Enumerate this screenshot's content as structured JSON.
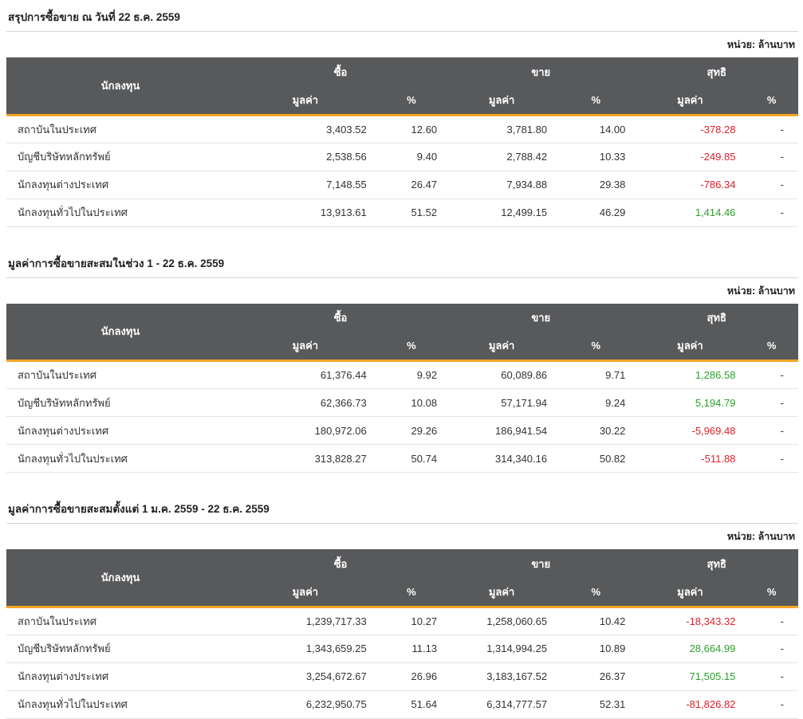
{
  "unit_label": "หน่วย: ล้านบาท",
  "columns": {
    "investor": "นักลงทุน",
    "buy": "ซื้อ",
    "sell": "ขาย",
    "net": "สุทธิ",
    "value": "มูลค่า",
    "percent": "%"
  },
  "colors": {
    "header_bg": "#58595b",
    "accent": "#f5a623",
    "positive": "#2e9e2e",
    "negative": "#d9232d"
  },
  "chart_data": [
    {
      "type": "table",
      "title": "สรุปการซื้อขาย ณ วันที่ 22 ธ.ค. 2559",
      "unit": "หน่วย: ล้านบาท",
      "rows": [
        {
          "investor": "สถาบันในประเทศ",
          "buy_value": "3,403.52",
          "buy_pct": "12.60",
          "sell_value": "3,781.80",
          "sell_pct": "14.00",
          "net_value": "-378.28",
          "net_pct": "-"
        },
        {
          "investor": "บัญชีบริษัทหลักทรัพย์",
          "buy_value": "2,538.56",
          "buy_pct": "9.40",
          "sell_value": "2,788.42",
          "sell_pct": "10.33",
          "net_value": "-249.85",
          "net_pct": "-"
        },
        {
          "investor": "นักลงทุนต่างประเทศ",
          "buy_value": "7,148.55",
          "buy_pct": "26.47",
          "sell_value": "7,934.88",
          "sell_pct": "29.38",
          "net_value": "-786.34",
          "net_pct": "-"
        },
        {
          "investor": "นักลงทุนทั่วไปในประเทศ",
          "buy_value": "13,913.61",
          "buy_pct": "51.52",
          "sell_value": "12,499.15",
          "sell_pct": "46.29",
          "net_value": "1,414.46",
          "net_pct": "-"
        }
      ]
    },
    {
      "type": "table",
      "title": "มูลค่าการซื้อขายสะสมในช่วง 1 - 22 ธ.ค. 2559",
      "unit": "หน่วย: ล้านบาท",
      "rows": [
        {
          "investor": "สถาบันในประเทศ",
          "buy_value": "61,376.44",
          "buy_pct": "9.92",
          "sell_value": "60,089.86",
          "sell_pct": "9.71",
          "net_value": "1,286.58",
          "net_pct": "-"
        },
        {
          "investor": "บัญชีบริษัทหลักทรัพย์",
          "buy_value": "62,366.73",
          "buy_pct": "10.08",
          "sell_value": "57,171.94",
          "sell_pct": "9.24",
          "net_value": "5,194.79",
          "net_pct": "-"
        },
        {
          "investor": "นักลงทุนต่างประเทศ",
          "buy_value": "180,972.06",
          "buy_pct": "29.26",
          "sell_value": "186,941.54",
          "sell_pct": "30.22",
          "net_value": "-5,969.48",
          "net_pct": "-"
        },
        {
          "investor": "นักลงทุนทั่วไปในประเทศ",
          "buy_value": "313,828.27",
          "buy_pct": "50.74",
          "sell_value": "314,340.16",
          "sell_pct": "50.82",
          "net_value": "-511.88",
          "net_pct": "-"
        }
      ]
    },
    {
      "type": "table",
      "title": "มูลค่าการซื้อขายสะสมตั้งแต่ 1 ม.ค. 2559 - 22 ธ.ค. 2559",
      "unit": "หน่วย: ล้านบาท",
      "rows": [
        {
          "investor": "สถาบันในประเทศ",
          "buy_value": "1,239,717.33",
          "buy_pct": "10.27",
          "sell_value": "1,258,060.65",
          "sell_pct": "10.42",
          "net_value": "-18,343.32",
          "net_pct": "-"
        },
        {
          "investor": "บัญชีบริษัทหลักทรัพย์",
          "buy_value": "1,343,659.25",
          "buy_pct": "11.13",
          "sell_value": "1,314,994.25",
          "sell_pct": "10.89",
          "net_value": "28,664.99",
          "net_pct": "-"
        },
        {
          "investor": "นักลงทุนต่างประเทศ",
          "buy_value": "3,254,672.67",
          "buy_pct": "26.96",
          "sell_value": "3,183,167.52",
          "sell_pct": "26.37",
          "net_value": "71,505.15",
          "net_pct": "-"
        },
        {
          "investor": "นักลงทุนทั่วไปในประเทศ",
          "buy_value": "6,232,950.75",
          "buy_pct": "51.64",
          "sell_value": "6,314,777.57",
          "sell_pct": "52.31",
          "net_value": "-81,826.82",
          "net_pct": "-"
        }
      ]
    }
  ]
}
